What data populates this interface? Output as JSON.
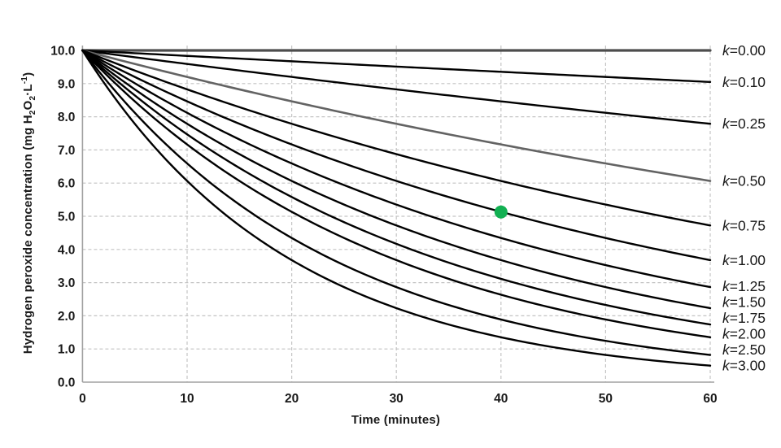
{
  "figure": {
    "background": "#ffffff",
    "x_axis_title": "Time (minutes)",
    "y_axis_title_plain": "Hydrogen peroxide concentration (mg H2O2·L-1)",
    "y_axis_title_parts": [
      {
        "text": "Hydrogen peroxide concentration (mg H"
      },
      {
        "text": "2",
        "style": "sub"
      },
      {
        "text": "O"
      },
      {
        "text": "2",
        "style": "sub"
      },
      {
        "text": "·L"
      },
      {
        "text": "-1",
        "style": "sup"
      },
      {
        "text": ")"
      }
    ]
  },
  "chart_data": {
    "type": "line",
    "title": "",
    "xlabel": "Time (minutes)",
    "ylabel": "Hydrogen peroxide concentration (mg H2O2·L-1)",
    "xlim": [
      0,
      60
    ],
    "ylim": [
      0.0,
      10.0
    ],
    "x_ticks": [
      0,
      10,
      20,
      30,
      40,
      50,
      60
    ],
    "x_tick_labels": [
      "0",
      "10",
      "20",
      "30",
      "40",
      "50",
      "60"
    ],
    "y_ticks": [
      0,
      1,
      2,
      3,
      4,
      5,
      6,
      7,
      8,
      9,
      10
    ],
    "y_tick_labels": [
      "0.0",
      "1.0",
      "2.0",
      "3.0",
      "4.0",
      "5.0",
      "6.0",
      "7.0",
      "8.0",
      "9.0",
      "10.0"
    ],
    "grid": "dashed",
    "legend_position": "labels-right-of-curves",
    "model": "C(t) = 10 * exp(-k * t / 60)",
    "initial_concentration": 10.0,
    "x_samples": [
      0,
      10,
      20,
      30,
      40,
      50,
      60
    ],
    "series": [
      {
        "label": "k=0.00",
        "k": 0.0,
        "color": "#4d4d4d",
        "width": 3.2,
        "values": [
          10.0,
          10.0,
          10.0,
          10.0,
          10.0,
          10.0,
          10.0
        ]
      },
      {
        "label": "k=0.10",
        "k": 0.1,
        "color": "#000000",
        "width": 2.4,
        "values": [
          10.0,
          9.83,
          9.67,
          9.51,
          9.36,
          9.2,
          9.05
        ]
      },
      {
        "label": "k=0.25",
        "k": 0.25,
        "color": "#000000",
        "width": 2.4,
        "values": [
          10.0,
          9.59,
          9.2,
          8.83,
          8.46,
          8.12,
          7.79
        ]
      },
      {
        "label": "k=0.50",
        "k": 0.5,
        "color": "#636363",
        "width": 2.6,
        "values": [
          10.0,
          9.2,
          8.46,
          7.79,
          7.17,
          6.59,
          6.07
        ]
      },
      {
        "label": "k=0.75",
        "k": 0.75,
        "color": "#000000",
        "width": 2.4,
        "values": [
          10.0,
          8.83,
          7.79,
          6.87,
          6.07,
          5.35,
          4.72
        ]
      },
      {
        "label": "k=1.00",
        "k": 1.0,
        "color": "#000000",
        "width": 2.4,
        "values": [
          10.0,
          8.46,
          7.17,
          6.07,
          5.13,
          4.35,
          3.68
        ]
      },
      {
        "label": "k=1.25",
        "k": 1.25,
        "color": "#000000",
        "width": 2.4,
        "values": [
          10.0,
          8.12,
          6.59,
          5.35,
          4.35,
          3.53,
          2.87
        ]
      },
      {
        "label": "k=1.50",
        "k": 1.5,
        "color": "#000000",
        "width": 2.4,
        "values": [
          10.0,
          7.79,
          6.07,
          4.72,
          3.68,
          2.87,
          2.23
        ]
      },
      {
        "label": "k=1.75",
        "k": 1.75,
        "color": "#000000",
        "width": 2.4,
        "values": [
          10.0,
          7.47,
          5.58,
          4.17,
          3.11,
          2.33,
          1.74
        ]
      },
      {
        "label": "k=2.00",
        "k": 2.0,
        "color": "#000000",
        "width": 2.4,
        "values": [
          10.0,
          7.17,
          5.13,
          3.68,
          2.64,
          1.89,
          1.35
        ]
      },
      {
        "label": "k=2.50",
        "k": 2.5,
        "color": "#000000",
        "width": 2.4,
        "values": [
          10.0,
          6.59,
          4.35,
          2.87,
          1.89,
          1.25,
          0.82
        ]
      },
      {
        "label": "k=3.00",
        "k": 3.0,
        "color": "#000000",
        "width": 2.4,
        "values": [
          10.0,
          6.07,
          3.68,
          2.23,
          1.35,
          0.82,
          0.5
        ]
      }
    ],
    "marker": {
      "x": 40,
      "y": 5.13,
      "on_series": "k=1.00",
      "color": "#12B052",
      "radius": 8
    },
    "colors": {
      "gridline": "#c4c4c4",
      "axis_line": "#a0a0a0",
      "tick_label": "#1a1a1a",
      "curve_label": "#1a1a1a"
    }
  }
}
